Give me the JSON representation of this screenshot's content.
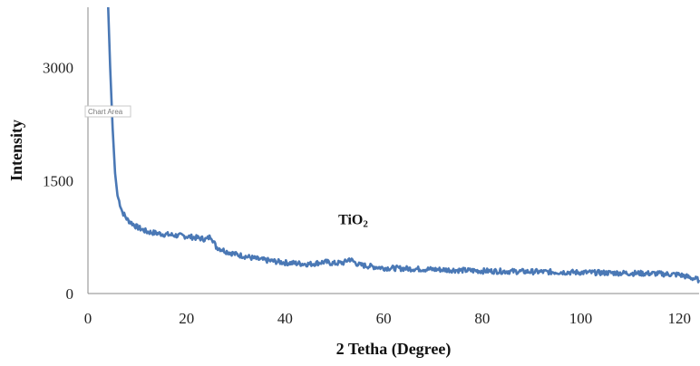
{
  "chart_data": {
    "type": "line",
    "title": "",
    "xlabel": "2 Tetha (Degree)",
    "ylabel": "Intensity",
    "xlim": [
      0,
      124
    ],
    "ylim": [
      0,
      3800
    ],
    "xticks": [
      0,
      20,
      40,
      60,
      80,
      100,
      120
    ],
    "yticks": [
      0,
      1500,
      3000
    ],
    "grid": false,
    "legend": "none",
    "line_color": "#4a78b5",
    "annotation": {
      "text": "TiO",
      "subscript": "2",
      "x": 53,
      "y": 460
    },
    "tooltip": "Chart Area",
    "series": [
      {
        "x": [
          4.1,
          4.5,
          5,
          5.5,
          6,
          7,
          8,
          10,
          12,
          15,
          18,
          20,
          22,
          24,
          25,
          26,
          28,
          30,
          35,
          40,
          45,
          48,
          50,
          52,
          53,
          55,
          60,
          70,
          80,
          90,
          100,
          110,
          115,
          120,
          124
        ],
        "y": [
          3800,
          3000,
          2200,
          1600,
          1300,
          1080,
          980,
          880,
          820,
          790,
          770,
          760,
          740,
          720,
          760,
          620,
          560,
          520,
          450,
          410,
          390,
          420,
          400,
          410,
          460,
          380,
          340,
          320,
          300,
          290,
          280,
          270,
          265,
          250,
          180
        ]
      }
    ]
  }
}
